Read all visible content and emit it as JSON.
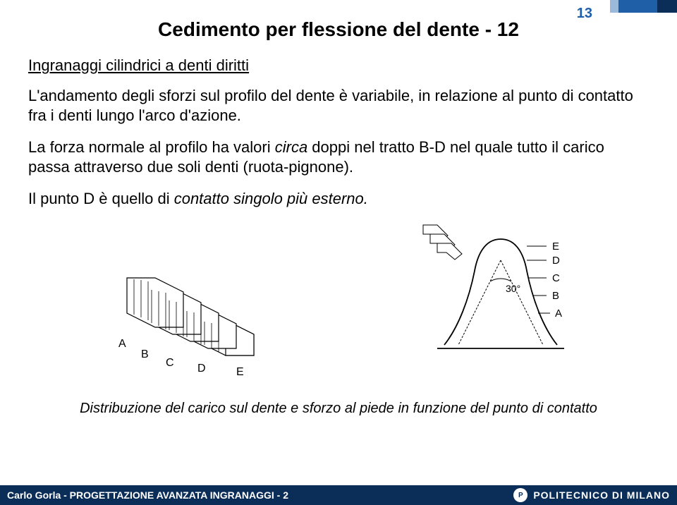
{
  "page_number": "13",
  "page_number_color": "#1f5fa8",
  "header_stripes": [
    {
      "color": "#9bbad9",
      "width": 12
    },
    {
      "color": "#1f5fa8",
      "width": 55
    },
    {
      "color": "#0b2e59",
      "width": 28
    }
  ],
  "title": "Cedimento per flessione del dente - 12",
  "subtitle": "Ingranaggi cilindrici a denti diritti",
  "para1_pre": "L'andamento degli sforzi sul profilo del dente è variabile, in relazione al punto di contatto fra i denti lungo l'arco d'azione.",
  "para2_a": "La forza normale al profilo ha valori ",
  "para2_b": "circa",
  "para2_c": " doppi nel tratto B-D nel quale tutto il carico passa attraverso due soli denti (ruota-pignone).",
  "para3_a": "Il punto D è quello di ",
  "para3_b": "contatto singolo più esterno.",
  "caption": "Distribuzione del carico sul dente e sforzo al piede in funzione del punto di contatto",
  "footer_left": "Carlo Gorla - PROGETTAZIONE AVANZATA INGRANAGGI - 2",
  "footer_right": "POLITECNICO DI MILANO",
  "figure_left": {
    "labels": [
      "A",
      "B",
      "C",
      "D",
      "E"
    ]
  },
  "figure_right": {
    "labels": [
      "E",
      "D",
      "C",
      "B",
      "A"
    ],
    "angle_label": "30°"
  }
}
